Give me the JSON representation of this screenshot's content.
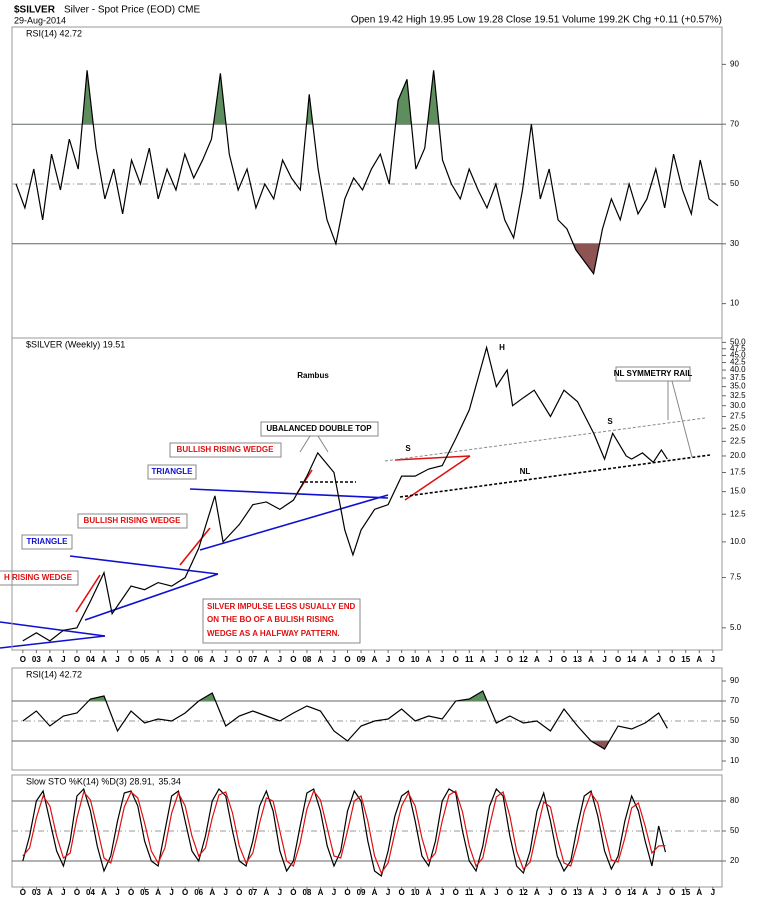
{
  "header": {
    "symbol": "$SILVER",
    "description": "Silver - Spot Price (EOD) CME",
    "date": "29-Aug-2014",
    "quote": "Open 19.42 High 19.95 Low 19.28 Close 19.51 Volume 199.2K Chg +0.11 (+0.57%)"
  },
  "chart_data": [
    {
      "type": "line",
      "title": "RSI(14) 42.72",
      "color": "#000000",
      "values": [
        50,
        42,
        55,
        38,
        60,
        48,
        65,
        55,
        88,
        62,
        45,
        55,
        40,
        58,
        50,
        62,
        45,
        55,
        48,
        60,
        52,
        58,
        65,
        87,
        60,
        48,
        55,
        42,
        50,
        45,
        58,
        52,
        48,
        80,
        55,
        38,
        30,
        45,
        52,
        48,
        55,
        60,
        50,
        78,
        85,
        55,
        62,
        88,
        58,
        50,
        45,
        55,
        48,
        42,
        50,
        38,
        32,
        48,
        70,
        45,
        55,
        38,
        35,
        28,
        24,
        20,
        35,
        45,
        38,
        50,
        40,
        45,
        55,
        42,
        60,
        48,
        40,
        58,
        45,
        42.72
      ],
      "ylim": [
        -1.5,
        102.5
      ],
      "yticks": [
        10,
        30,
        50,
        70,
        90
      ],
      "overbought": 70,
      "oversold": 30,
      "midline": 50,
      "overbought_color": "#5e8e5e",
      "oversold_color": "#8e5454"
    },
    {
      "type": "line",
      "title": "$SILVER (Weekly) 19.51",
      "color": "#000000",
      "log_scale": true,
      "x": [
        2002.75,
        2003.0,
        2003.25,
        2003.5,
        2003.75,
        2004.0,
        2004.25,
        2004.4,
        2004.75,
        2005.0,
        2005.25,
        2005.5,
        2005.75,
        2006.0,
        2006.3,
        2006.45,
        2006.75,
        2007.0,
        2007.25,
        2007.5,
        2007.75,
        2008.0,
        2008.2,
        2008.5,
        2008.7,
        2008.85,
        2009.0,
        2009.25,
        2009.5,
        2009.75,
        2010.0,
        2010.25,
        2010.5,
        2010.75,
        2011.0,
        2011.32,
        2011.5,
        2011.7,
        2011.8,
        2012.0,
        2012.2,
        2012.5,
        2012.75,
        2013.0,
        2013.3,
        2013.5,
        2013.65,
        2013.9,
        2014.0,
        2014.2,
        2014.4,
        2014.55,
        2014.66
      ],
      "values": [
        4.5,
        4.8,
        4.5,
        4.9,
        5.0,
        6.2,
        7.8,
        5.6,
        7.0,
        6.8,
        7.2,
        7.0,
        7.5,
        9.5,
        14.5,
        10.0,
        11.5,
        13.5,
        13.8,
        13.0,
        14.0,
        17.0,
        20.5,
        17.5,
        11.0,
        9.0,
        11.0,
        13.0,
        13.5,
        17.0,
        17.0,
        18.0,
        18.5,
        23.0,
        29.0,
        48.0,
        35.0,
        40.0,
        30.0,
        32.0,
        34.0,
        27.5,
        34.0,
        31.0,
        24.0,
        19.5,
        24.0,
        20.0,
        19.5,
        20.5,
        19.0,
        21.0,
        19.51
      ],
      "xlim": [
        2002.55,
        2015.67
      ],
      "ylim": [
        4.18,
        51.8
      ],
      "yticks": [
        {
          "value": 5,
          "label": "5.0"
        },
        7.5,
        {
          "value": 10,
          "label": "10.0"
        },
        12.5,
        {
          "value": 15,
          "label": "15.0"
        },
        17.5,
        {
          "value": 20,
          "label": "20.0"
        },
        22.5,
        {
          "value": 25,
          "label": "25.0"
        },
        27.5,
        {
          "value": 30,
          "label": "30.0"
        },
        32.5,
        {
          "value": 35,
          "label": "35.0"
        },
        37.5,
        {
          "value": 40,
          "label": "40.0"
        },
        42.5,
        {
          "value": 45,
          "label": "45.0"
        },
        47.5,
        {
          "value": 50,
          "label": "50.0"
        }
      ],
      "xticks": [
        {
          "value": 2002.75,
          "label": "O"
        },
        {
          "value": 2003,
          "label": "03"
        },
        {
          "value": 2003.25,
          "label": "A"
        },
        {
          "value": 2003.5,
          "label": "J"
        },
        {
          "value": 2003.75,
          "label": "O"
        },
        {
          "value": 2004,
          "label": "04"
        },
        {
          "value": 2004.25,
          "label": "A"
        },
        {
          "value": 2004.5,
          "label": "J"
        },
        {
          "value": 2004.75,
          "label": "O"
        },
        {
          "value": 2005,
          "label": "05"
        },
        {
          "value": 2005.25,
          "label": "A"
        },
        {
          "value": 2005.5,
          "label": "J"
        },
        {
          "value": 2005.75,
          "label": "O"
        },
        {
          "value": 2006,
          "label": "06"
        },
        {
          "value": 2006.25,
          "label": "A"
        },
        {
          "value": 2006.5,
          "label": "J"
        },
        {
          "value": 2006.75,
          "label": "O"
        },
        {
          "value": 2007,
          "label": "07"
        },
        {
          "value": 2007.25,
          "label": "A"
        },
        {
          "value": 2007.5,
          "label": "J"
        },
        {
          "value": 2007.75,
          "label": "O"
        },
        {
          "value": 2008,
          "label": "08"
        },
        {
          "value": 2008.25,
          "label": "A"
        },
        {
          "value": 2008.5,
          "label": "J"
        },
        {
          "value": 2008.75,
          "label": "O"
        },
        {
          "value": 2009,
          "label": "09"
        },
        {
          "value": 2009.25,
          "label": "A"
        },
        {
          "value": 2009.5,
          "label": "J"
        },
        {
          "value": 2009.75,
          "label": "O"
        },
        {
          "value": 2010,
          "label": "10"
        },
        {
          "value": 2010.25,
          "label": "A"
        },
        {
          "value": 2010.5,
          "label": "J"
        },
        {
          "value": 2010.75,
          "label": "O"
        },
        {
          "value": 2011,
          "label": "11"
        },
        {
          "value": 2011.25,
          "label": "A"
        },
        {
          "value": 2011.5,
          "label": "J"
        },
        {
          "value": 2011.75,
          "label": "O"
        },
        {
          "value": 2012,
          "label": "12"
        },
        {
          "value": 2012.25,
          "label": "A"
        },
        {
          "value": 2012.5,
          "label": "J"
        },
        {
          "value": 2012.75,
          "label": "O"
        },
        {
          "value": 2013,
          "label": "13"
        },
        {
          "value": 2013.25,
          "label": "A"
        },
        {
          "value": 2013.5,
          "label": "J"
        },
        {
          "value": 2013.75,
          "label": "O"
        },
        {
          "value": 2014,
          "label": "14"
        },
        {
          "value": 2014.25,
          "label": "A"
        },
        {
          "value": 2014.5,
          "label": "J"
        },
        {
          "value": 2014.75,
          "label": "O"
        },
        {
          "value": 2015,
          "label": "15"
        },
        {
          "value": 2015.25,
          "label": "A"
        },
        {
          "value": 2015.5,
          "label": "J"
        }
      ],
      "annotations": [
        "Rambus",
        "H",
        "S",
        "S",
        "NL",
        "NL SYMMETRY RAIL",
        "UBALANCED DOUBLE TOP",
        "BULLISH RISING WEDGE",
        "TRIANGLE",
        "BULLISH RISING WEDGE",
        "TRIANGLE",
        "H RISING WEDGE",
        "SILVER IMPULSE LEGS USUALLY END",
        "ON THE BO OF A BULISH RISING",
        "WEDGE AS A HALFWAY PATTERN."
      ]
    },
    {
      "type": "line",
      "title": "RSI(14) 42.72",
      "color": "#000000",
      "x": [
        2002.75,
        2003,
        2003.25,
        2003.5,
        2003.75,
        2004,
        2004.25,
        2004.5,
        2004.75,
        2005,
        2005.25,
        2005.5,
        2005.75,
        2006,
        2006.25,
        2006.5,
        2006.75,
        2007,
        2007.25,
        2007.5,
        2007.75,
        2008,
        2008.25,
        2008.5,
        2008.75,
        2009,
        2009.25,
        2009.5,
        2009.75,
        2010,
        2010.25,
        2010.5,
        2010.75,
        2011,
        2011.25,
        2011.5,
        2011.75,
        2012,
        2012.25,
        2012.5,
        2012.75,
        2013,
        2013.25,
        2013.5,
        2013.75,
        2014,
        2014.25,
        2014.5,
        2014.66
      ],
      "values": [
        50,
        60,
        45,
        55,
        58,
        72,
        75,
        40,
        60,
        48,
        52,
        50,
        58,
        70,
        78,
        45,
        55,
        60,
        55,
        50,
        58,
        65,
        60,
        40,
        30,
        45,
        50,
        52,
        62,
        50,
        55,
        52,
        70,
        72,
        80,
        48,
        55,
        48,
        50,
        40,
        62,
        45,
        30,
        22,
        45,
        42,
        48,
        58,
        42.72
      ],
      "xlim": [
        2002.55,
        2015.67
      ],
      "ylim": [
        1,
        103
      ],
      "yticks": [
        10,
        30,
        50,
        70,
        90
      ],
      "overbought": 70,
      "oversold": 30,
      "midline": 50,
      "overbought_color": "#5e8e5e",
      "oversold_color": "#8e5454"
    },
    {
      "type": "line",
      "title": "Slow STO %K(14) %D(3) 28.91,",
      "x": [
        2002.75,
        2002.875,
        2003,
        2003.125,
        2003.25,
        2003.375,
        2003.5,
        2003.625,
        2003.75,
        2003.875,
        2004,
        2004.125,
        2004.25,
        2004.375,
        2004.5,
        2004.625,
        2004.75,
        2004.875,
        2005,
        2005.125,
        2005.25,
        2005.375,
        2005.5,
        2005.625,
        2005.75,
        2005.875,
        2006,
        2006.125,
        2006.25,
        2006.375,
        2006.5,
        2006.625,
        2006.75,
        2006.875,
        2007,
        2007.125,
        2007.25,
        2007.375,
        2007.5,
        2007.625,
        2007.75,
        2007.875,
        2008,
        2008.125,
        2008.25,
        2008.375,
        2008.5,
        2008.625,
        2008.75,
        2008.875,
        2009,
        2009.125,
        2009.25,
        2009.375,
        2009.5,
        2009.625,
        2009.75,
        2009.875,
        2010,
        2010.125,
        2010.25,
        2010.375,
        2010.5,
        2010.625,
        2010.75,
        2010.875,
        2011,
        2011.125,
        2011.25,
        2011.375,
        2011.5,
        2011.625,
        2011.75,
        2011.875,
        2012,
        2012.125,
        2012.25,
        2012.375,
        2012.5,
        2012.625,
        2012.75,
        2012.875,
        2013,
        2013.125,
        2013.25,
        2013.375,
        2013.5,
        2013.625,
        2013.75,
        2013.875,
        2014,
        2014.125,
        2014.25,
        2014.375,
        2014.5,
        2014.625
      ],
      "series": [
        {
          "name": "%K",
          "color": "#000000",
          "values": [
            20,
            45,
            80,
            90,
            60,
            30,
            15,
            40,
            85,
            92,
            70,
            35,
            10,
            25,
            60,
            88,
            90,
            75,
            40,
            20,
            15,
            50,
            85,
            90,
            60,
            30,
            20,
            45,
            80,
            92,
            85,
            50,
            20,
            15,
            40,
            75,
            90,
            70,
            30,
            10,
            20,
            55,
            88,
            92,
            70,
            35,
            15,
            30,
            70,
            90,
            80,
            40,
            10,
            5,
            30,
            65,
            85,
            90,
            60,
            25,
            15,
            40,
            80,
            92,
            88,
            50,
            20,
            10,
            35,
            75,
            92,
            85,
            45,
            15,
            8,
            30,
            70,
            88,
            60,
            25,
            10,
            20,
            55,
            85,
            90,
            65,
            30,
            12,
            25,
            60,
            85,
            70,
            40,
            15,
            55,
            28.91
          ]
        },
        {
          "name": "%D",
          "color": "#e01010",
          "values": [
            25,
            33,
            63,
            85,
            75,
            45,
            23,
            28,
            63,
            89,
            81,
            53,
            23,
            18,
            43,
            74,
            89,
            83,
            58,
            30,
            18,
            33,
            68,
            88,
            75,
            45,
            25,
            33,
            63,
            86,
            89,
            68,
            35,
            18,
            28,
            58,
            83,
            80,
            50,
            20,
            15,
            38,
            72,
            90,
            81,
            53,
            25,
            23,
            50,
            80,
            85,
            60,
            25,
            8,
            18,
            48,
            75,
            88,
            75,
            43,
            20,
            28,
            60,
            86,
            90,
            69,
            35,
            15,
            23,
            55,
            84,
            89,
            65,
            30,
            12,
            19,
            50,
            79,
            74,
            43,
            18,
            15,
            38,
            70,
            88,
            78,
            48,
            21,
            19,
            43,
            73,
            78,
            55,
            28,
            35,
            35.34
          ]
        }
      ],
      "xlim": [
        2002.55,
        2015.67
      ],
      "ylim": [
        -6,
        106
      ],
      "yticks": [
        20,
        50,
        80
      ],
      "overbought": 80,
      "oversold": 20,
      "midline": 50
    }
  ]
}
